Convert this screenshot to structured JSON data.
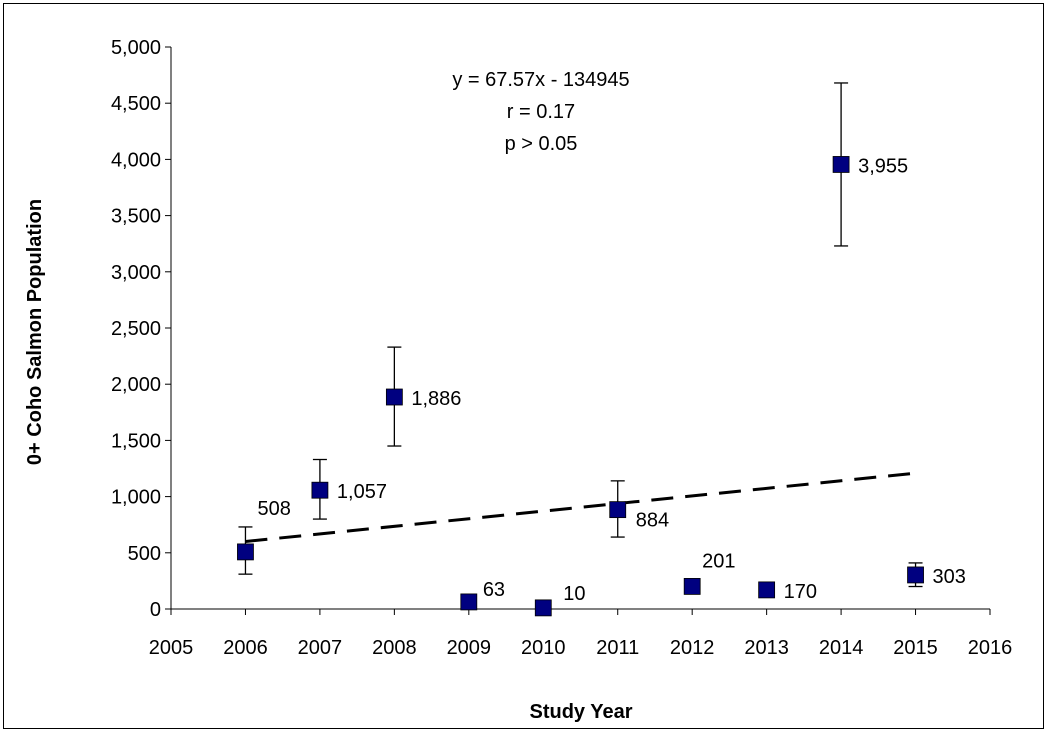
{
  "chart_data": {
    "type": "scatter",
    "xlabel": "Study Year",
    "ylabel": "0+ Coho Salmon Population",
    "xlim": [
      2005,
      2016
    ],
    "ylim": [
      0,
      5000
    ],
    "x_ticks": [
      "2005",
      "2006",
      "2007",
      "2008",
      "2009",
      "2010",
      "2011",
      "2012",
      "2013",
      "2014",
      "2015",
      "2016"
    ],
    "y_ticks": [
      "0",
      "500",
      "1,000",
      "1,500",
      "2,000",
      "2,500",
      "3,000",
      "3,500",
      "4,000",
      "4,500",
      "5,000"
    ],
    "grid": false,
    "legend": "none",
    "marker_color": "#000080",
    "points": [
      {
        "x": 2006,
        "y": 508,
        "label": "508",
        "err_low": 310,
        "err_high": 730
      },
      {
        "x": 2007,
        "y": 1057,
        "label": "1,057",
        "err_low": 800,
        "err_high": 1330
      },
      {
        "x": 2008,
        "y": 1886,
        "label": "1,886",
        "err_low": 1450,
        "err_high": 2330
      },
      {
        "x": 2009,
        "y": 63,
        "label": "63"
      },
      {
        "x": 2010,
        "y": 10,
        "label": "10"
      },
      {
        "x": 2011,
        "y": 884,
        "label": "884",
        "err_low": 640,
        "err_high": 1140
      },
      {
        "x": 2012,
        "y": 201,
        "label": "201",
        "err_low": 160,
        "err_high": 240
      },
      {
        "x": 2013,
        "y": 170,
        "label": "170"
      },
      {
        "x": 2014,
        "y": 3955,
        "label": "3,955",
        "err_low": 3230,
        "err_high": 4680
      },
      {
        "x": 2015,
        "y": 303,
        "label": "303",
        "err_low": 200,
        "err_high": 410
      }
    ],
    "trendline": {
      "style": "dashed",
      "slope": 67.57,
      "intercept": -134945,
      "x_range": [
        2006,
        2015
      ]
    },
    "annotations": [
      "y = 67.57x - 134945",
      "r = 0.17",
      "p > 0.05"
    ]
  }
}
